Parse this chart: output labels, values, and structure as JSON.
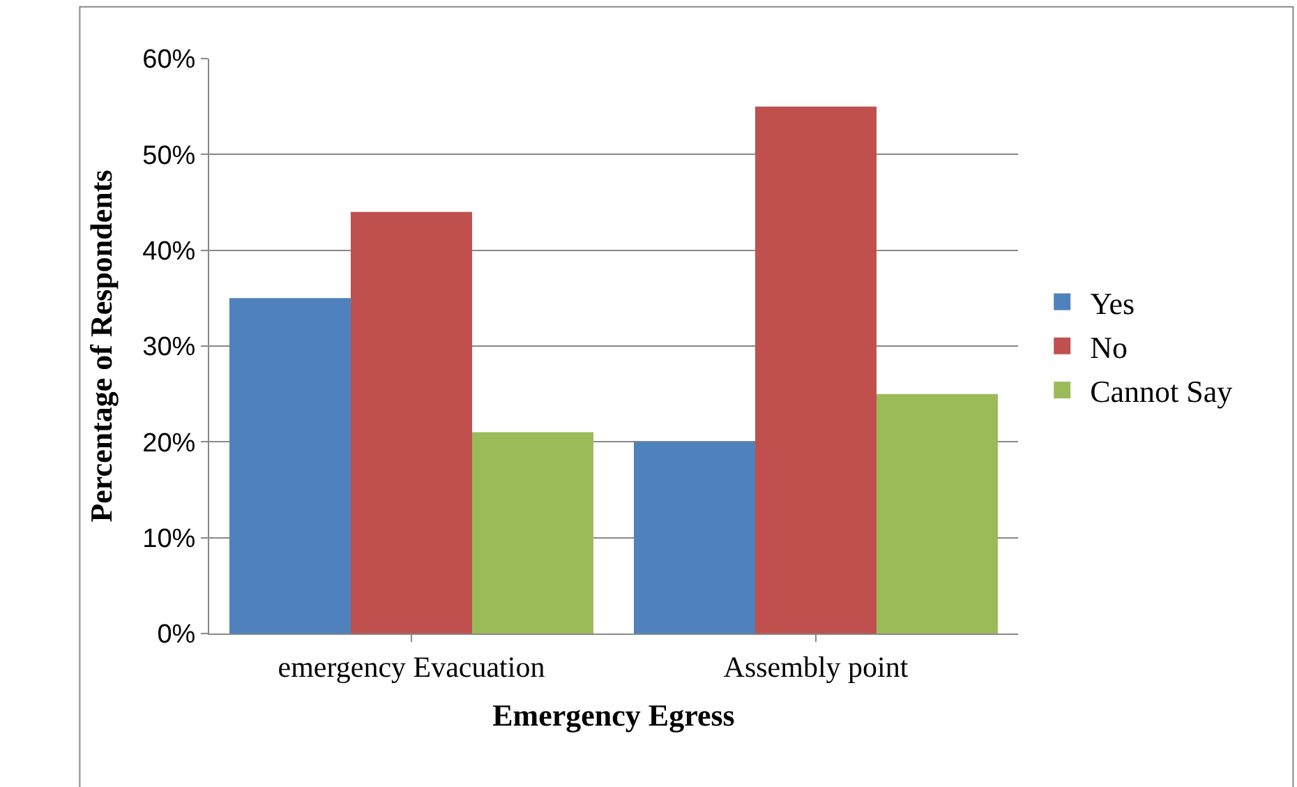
{
  "chart_data": {
    "type": "bar",
    "xlabel": "Emergency Egress",
    "ylabel": "Percentage of Respondents",
    "categories": [
      "emergency Evacuation",
      "Assembly point"
    ],
    "series": [
      {
        "name": "Yes",
        "color": "#4f81bd",
        "values": [
          35,
          20
        ]
      },
      {
        "name": "No",
        "color": "#c0504d",
        "values": [
          44,
          55
        ]
      },
      {
        "name": "Cannot Say",
        "color": "#9bbb59",
        "values": [
          21,
          25
        ]
      }
    ],
    "ylim": [
      0,
      60
    ],
    "yticks": [
      {
        "value": 0,
        "label": "0%"
      },
      {
        "value": 10,
        "label": "10%"
      },
      {
        "value": 20,
        "label": "20%"
      },
      {
        "value": 30,
        "label": "30%"
      },
      {
        "value": 40,
        "label": "40%"
      },
      {
        "value": 50,
        "label": "50%"
      },
      {
        "value": 60,
        "label": "60%"
      }
    ],
    "grid": "y",
    "legend": "right"
  }
}
